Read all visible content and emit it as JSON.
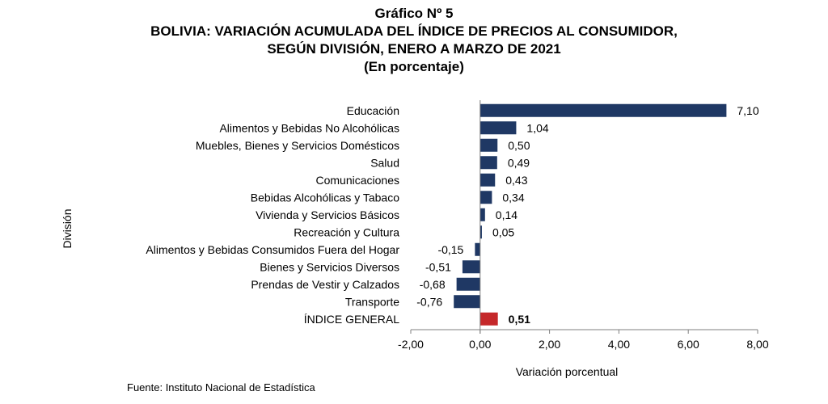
{
  "header": {
    "title": "Gráfico Nº 5",
    "subtitle_line1": "BOLIVIA: VARIACIÓN ACUMULADA DEL ÍNDICE DE PRECIOS AL CONSUMIDOR,",
    "subtitle_line2": "SEGÚN DIVISIÓN, ENERO A MARZO DE 2021",
    "subtitle_line3": "(En porcentaje)"
  },
  "footer": {
    "source": "Fuente: Instituto Nacional de Estadística"
  },
  "colors": {
    "bar": "#1f3864",
    "highlight": "#c5282a",
    "axis": "#7f7f7f"
  },
  "chart_data": {
    "type": "bar",
    "orientation": "horizontal",
    "categories": [
      "Educación",
      "Alimentos y Bebidas No Alcohólicas",
      "Muebles, Bienes y Servicios Domésticos",
      "Salud",
      "Comunicaciones",
      "Bebidas Alcohólicas y Tabaco",
      "Vivienda y Servicios Básicos",
      "Recreación y Cultura",
      "Alimentos y Bebidas Consumidos Fuera del Hogar",
      "Bienes y Servicios Diversos",
      "Prendas de Vestir y Calzados",
      "Transporte",
      "ÍNDICE GENERAL"
    ],
    "values": [
      7.1,
      1.04,
      0.5,
      0.49,
      0.43,
      0.34,
      0.14,
      0.05,
      -0.15,
      -0.51,
      -0.68,
      -0.76,
      0.51
    ],
    "value_labels": [
      "7,10",
      "1,04",
      "0,50",
      "0,49",
      "0,43",
      "0,34",
      "0,14",
      "0,05",
      "-0,15",
      "-0,51",
      "-0,68",
      "-0,76",
      "0,51"
    ],
    "highlight_category": "ÍNDICE GENERAL",
    "xlabel": "Variación porcentual",
    "ylabel": "División",
    "xlim": [
      -2,
      8
    ],
    "xticks": [
      -2,
      0,
      2,
      4,
      6,
      8
    ],
    "xtick_labels": [
      "-2,00",
      "0,00",
      "2,00",
      "4,00",
      "6,00",
      "8,00"
    ],
    "grid": false,
    "legend": "none"
  }
}
